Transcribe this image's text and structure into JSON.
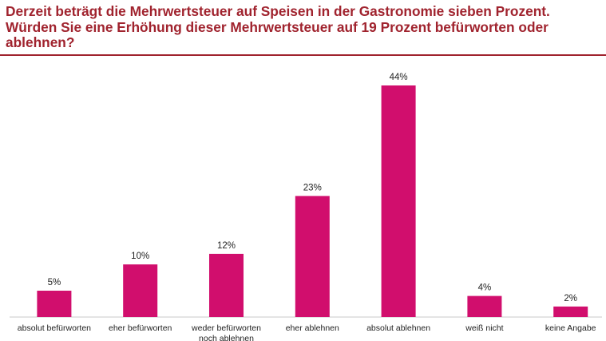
{
  "title_lines": [
    "Derzeit beträgt die Mehrwertsteuer auf Speisen in der Gastronomie sieben Prozent.",
    "Würden Sie eine Erhöhung dieser Mehrwertsteuer auf 19 Prozent befürworten oder",
    "ablehnen?"
  ],
  "colors": {
    "title": "#a0232e",
    "bar": "#d10e6d",
    "rule": "#a0232e"
  },
  "chart_data": {
    "type": "bar",
    "title": "Derzeit beträgt die Mehrwertsteuer auf Speisen in der Gastronomie sieben Prozent. Würden Sie eine Erhöhung dieser Mehrwertsteuer auf 19 Prozent befürworten oder ablehnen?",
    "categories": [
      [
        "absolut befürworten"
      ],
      [
        "eher befürworten"
      ],
      [
        "weder befürworten",
        "noch ablehnen"
      ],
      [
        "eher ablehnen"
      ],
      [
        "absolut ablehnen"
      ],
      [
        "weiß nicht"
      ],
      [
        "keine Angabe"
      ]
    ],
    "values": [
      5,
      10,
      12,
      23,
      44,
      4,
      2
    ],
    "value_labels": [
      "5%",
      "10%",
      "12%",
      "23%",
      "44%",
      "4%",
      "2%"
    ],
    "ylim": [
      0,
      44
    ],
    "grid": false,
    "legend": "none"
  }
}
